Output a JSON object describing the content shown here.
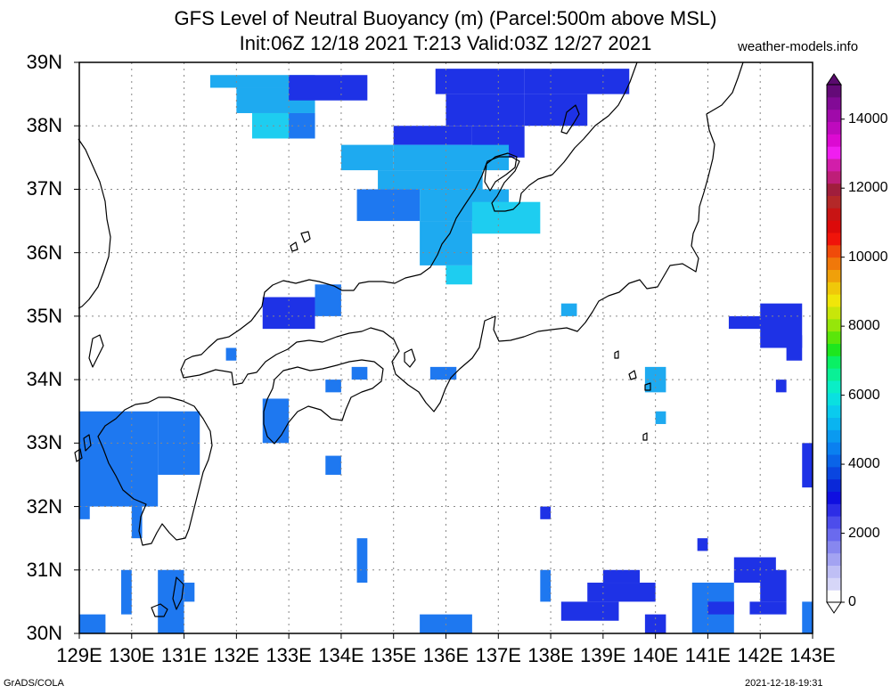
{
  "title": {
    "line1": "GFS Level of Neutral Buoyancy (m) (Parcel:500m above MSL)",
    "line2": "Init:06Z 12/18 2021 T:213 Valid:03Z 12/27 2021"
  },
  "site": "weather-models.info",
  "footer": {
    "left": "GrADS/COLA",
    "right": "2021-12-18-19:31"
  },
  "map": {
    "lon_range": [
      129,
      143
    ],
    "lat_range": [
      30,
      39
    ],
    "x_ticks": [
      "129E",
      "130E",
      "131E",
      "132E",
      "133E",
      "134E",
      "135E",
      "136E",
      "137E",
      "138E",
      "139E",
      "140E",
      "141E",
      "142E",
      "143E"
    ],
    "y_ticks": [
      "39N",
      "38N",
      "37N",
      "36N",
      "35N",
      "34N",
      "33N",
      "32N",
      "31N",
      "30N"
    ],
    "grid": true,
    "region": "Japan (Kyushu, Shikoku, Honshu)"
  },
  "colorbar": {
    "labels": [
      "14000",
      "12000",
      "10000",
      "8000",
      "6000",
      "4000",
      "2000",
      "0"
    ],
    "colors": [
      "#fdfdfd",
      "#d6d6f8",
      "#bfbff5",
      "#a3a3f2",
      "#8787ef",
      "#6a6aee",
      "#4d4deb",
      "#2d2de6",
      "#0f0fe0",
      "#0a28d8",
      "#0a46e0",
      "#0a64e8",
      "#0a80f0",
      "#0a9af0",
      "#0ab4f0",
      "#0acbee",
      "#0ae0e0",
      "#0aeec6",
      "#0af096",
      "#0af064",
      "#1ee61e",
      "#5ae60a",
      "#96e60a",
      "#c8e60a",
      "#f0e60a",
      "#f0c80a",
      "#f0a00a",
      "#f0780a",
      "#f04b0a",
      "#f0140a",
      "#dc0a0a",
      "#c81414",
      "#b42828",
      "#a01e3c",
      "#be1e78",
      "#d21eaa",
      "#f01ef0",
      "#dc0ad2",
      "#be0abe",
      "#a00aaa",
      "#820a96",
      "#640a78"
    ]
  },
  "legend_colors": {
    "blue_low": "#1e32e6",
    "blue_mid": "#1e78f0",
    "cyan": "#1eaaf0",
    "cyan_light": "#1ecdf0"
  }
}
